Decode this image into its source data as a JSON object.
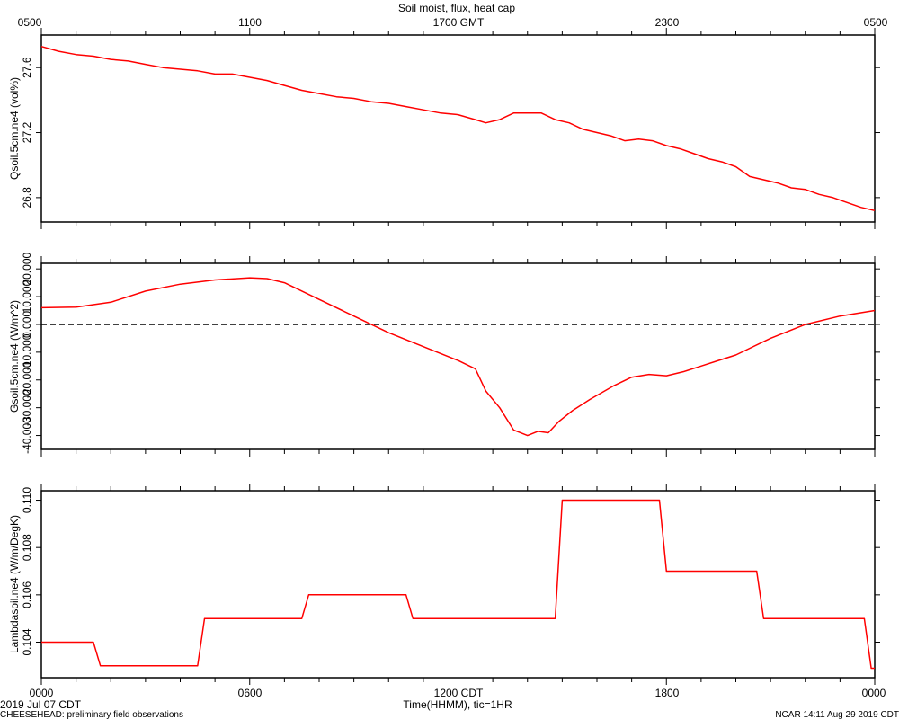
{
  "title": "Soil moist, flux, heat cap",
  "top_axis": {
    "ticks": [
      "0500",
      "1100",
      "1700 GMT",
      "2300",
      "0500"
    ]
  },
  "bottom_axis": {
    "ticks": [
      "0000",
      "0600",
      "1200 CDT",
      "1800",
      "0000"
    ],
    "label": "Time(HHMM), tic=1HR",
    "date": "2019 Jul 07 CDT"
  },
  "footer": {
    "left": "CHEESEHEAD: preliminary field observations",
    "right": "NCAR 14:11 Aug 29 2019 CDT"
  },
  "line_color": "#ff0000",
  "chart_data": [
    {
      "type": "line",
      "ylabel": "Qsoil.5cm.ne4 (vol%)",
      "xlim": [
        0,
        24
      ],
      "ylim": [
        26.65,
        27.8
      ],
      "yticks": [
        26.8,
        27.2,
        27.6
      ],
      "x": [
        0,
        0.5,
        1,
        1.5,
        2,
        2.5,
        3,
        3.5,
        4,
        4.5,
        5,
        5.5,
        6,
        6.5,
        7,
        7.5,
        8,
        8.5,
        9,
        9.5,
        10,
        10.5,
        11,
        11.5,
        12,
        12.5,
        12.8,
        13.2,
        13.6,
        14,
        14.4,
        14.8,
        15.2,
        15.6,
        16,
        16.4,
        16.8,
        17.2,
        17.6,
        18,
        18.4,
        18.8,
        19.2,
        19.6,
        20,
        20.4,
        20.8,
        21.2,
        21.6,
        22,
        22.4,
        22.8,
        23.2,
        23.6,
        24
      ],
      "values": [
        27.73,
        27.7,
        27.68,
        27.67,
        27.65,
        27.64,
        27.62,
        27.6,
        27.59,
        27.58,
        27.56,
        27.56,
        27.54,
        27.52,
        27.49,
        27.46,
        27.44,
        27.42,
        27.41,
        27.39,
        27.38,
        27.36,
        27.34,
        27.32,
        27.31,
        27.28,
        27.26,
        27.28,
        27.32,
        27.32,
        27.32,
        27.28,
        27.26,
        27.22,
        27.2,
        27.18,
        27.15,
        27.16,
        27.15,
        27.12,
        27.1,
        27.07,
        27.04,
        27.02,
        26.99,
        26.93,
        26.91,
        26.89,
        26.86,
        26.85,
        26.82,
        26.8,
        26.77,
        26.74,
        26.72
      ]
    },
    {
      "type": "line",
      "ylabel": "Gsoil.5cm.ne4 (W/m^2)",
      "xlim": [
        0,
        24
      ],
      "ylim": [
        -45,
        22
      ],
      "yticks": [
        20,
        10,
        0,
        -10,
        -20,
        -30,
        -40
      ],
      "reference_line": 0,
      "x": [
        0,
        1,
        2,
        3,
        4,
        5,
        6,
        6.5,
        7,
        8,
        9,
        10,
        11,
        12,
        12.5,
        12.8,
        13.2,
        13.6,
        14,
        14.3,
        14.6,
        14.9,
        15.3,
        15.8,
        16.5,
        17,
        17.5,
        18,
        18.5,
        19,
        19.5,
        20,
        21,
        22,
        23,
        24
      ],
      "values": [
        6,
        6.2,
        8,
        12,
        14.5,
        16,
        16.8,
        16.5,
        15,
        9,
        3,
        -3,
        -8,
        -13,
        -16,
        -24,
        -30,
        -38,
        -40,
        -38.5,
        -39,
        -35,
        -31,
        -27,
        -22,
        -19,
        -18,
        -18.5,
        -17,
        -15,
        -13,
        -11,
        -5,
        0,
        3,
        5
      ]
    },
    {
      "type": "line",
      "ylabel": "Lambdasoil.ne4 (W/m/DegK)",
      "xlim": [
        0,
        24
      ],
      "ylim": [
        0.1025,
        0.1104
      ],
      "yticks": [
        0.104,
        0.106,
        0.108,
        0.11
      ],
      "x": [
        0,
        1.5,
        1.7,
        4.5,
        4.7,
        7.5,
        7.7,
        10.5,
        10.7,
        14.8,
        15,
        17.8,
        18,
        20.6,
        20.8,
        23.7,
        23.9,
        24
      ],
      "values": [
        0.104,
        0.104,
        0.103,
        0.103,
        0.105,
        0.105,
        0.106,
        0.106,
        0.105,
        0.105,
        0.11,
        0.11,
        0.107,
        0.107,
        0.105,
        0.105,
        0.1029,
        0.1029
      ]
    }
  ]
}
